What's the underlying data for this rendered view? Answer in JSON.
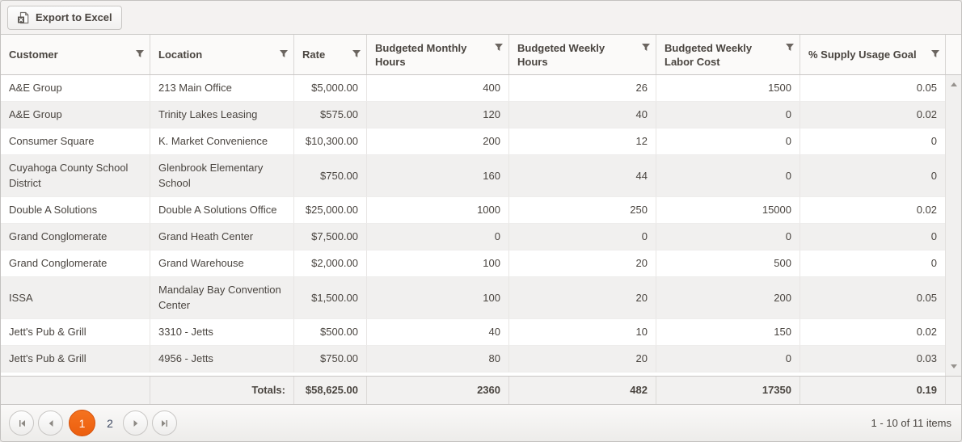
{
  "toolbar": {
    "export_label": "Export to Excel"
  },
  "grid": {
    "columns": [
      {
        "key": "customer",
        "label": "Customer",
        "align": "left"
      },
      {
        "key": "location",
        "label": "Location",
        "align": "left"
      },
      {
        "key": "rate",
        "label": "Rate",
        "align": "right"
      },
      {
        "key": "monthly_hours",
        "label": "Budgeted Monthly Hours",
        "align": "right"
      },
      {
        "key": "weekly_hours",
        "label": "Budgeted Weekly Hours",
        "align": "right"
      },
      {
        "key": "labor_cost",
        "label": "Budgeted Weekly Labor Cost",
        "align": "right"
      },
      {
        "key": "supply_goal",
        "label": "% Supply Usage Goal",
        "align": "right"
      }
    ],
    "rows": [
      {
        "customer": "A&E Group",
        "location": "213 Main Office",
        "rate": "$5,000.00",
        "monthly_hours": "400",
        "weekly_hours": "26",
        "labor_cost": "1500",
        "supply_goal": "0.05"
      },
      {
        "customer": "A&E Group",
        "location": "Trinity Lakes Leasing",
        "rate": "$575.00",
        "monthly_hours": "120",
        "weekly_hours": "40",
        "labor_cost": "0",
        "supply_goal": "0.02"
      },
      {
        "customer": "Consumer Square",
        "location": "K. Market Convenience",
        "rate": "$10,300.00",
        "monthly_hours": "200",
        "weekly_hours": "12",
        "labor_cost": "0",
        "supply_goal": "0"
      },
      {
        "customer": "Cuyahoga County School District",
        "location": "Glenbrook Elementary School",
        "rate": "$750.00",
        "monthly_hours": "160",
        "weekly_hours": "44",
        "labor_cost": "0",
        "supply_goal": "0"
      },
      {
        "customer": "Double A Solutions",
        "location": "Double A Solutions Office",
        "rate": "$25,000.00",
        "monthly_hours": "1000",
        "weekly_hours": "250",
        "labor_cost": "15000",
        "supply_goal": "0.02"
      },
      {
        "customer": "Grand Conglomerate",
        "location": "Grand Heath Center",
        "rate": "$7,500.00",
        "monthly_hours": "0",
        "weekly_hours": "0",
        "labor_cost": "0",
        "supply_goal": "0"
      },
      {
        "customer": "Grand Conglomerate",
        "location": "Grand Warehouse",
        "rate": "$2,000.00",
        "monthly_hours": "100",
        "weekly_hours": "20",
        "labor_cost": "500",
        "supply_goal": "0"
      },
      {
        "customer": "ISSA",
        "location": "Mandalay Bay Convention Center",
        "rate": "$1,500.00",
        "monthly_hours": "100",
        "weekly_hours": "20",
        "labor_cost": "200",
        "supply_goal": "0.05"
      },
      {
        "customer": "Jett's Pub & Grill",
        "location": "3310 - Jetts",
        "rate": "$500.00",
        "monthly_hours": "40",
        "weekly_hours": "10",
        "labor_cost": "150",
        "supply_goal": "0.02"
      },
      {
        "customer": "Jett's Pub & Grill",
        "location": "4956 - Jetts",
        "rate": "$750.00",
        "monthly_hours": "80",
        "weekly_hours": "20",
        "labor_cost": "0",
        "supply_goal": "0.03"
      }
    ],
    "totals": {
      "label": "Totals:",
      "rate": "$58,625.00",
      "monthly_hours": "2360",
      "weekly_hours": "482",
      "labor_cost": "17350",
      "supply_goal": "0.19"
    }
  },
  "pager": {
    "page_1": "1",
    "page_2": "2",
    "info": "1 - 10 of 11 items"
  },
  "colors": {
    "accent_orange": "#ec5e0e",
    "accent_orange_light": "#f5731f"
  }
}
